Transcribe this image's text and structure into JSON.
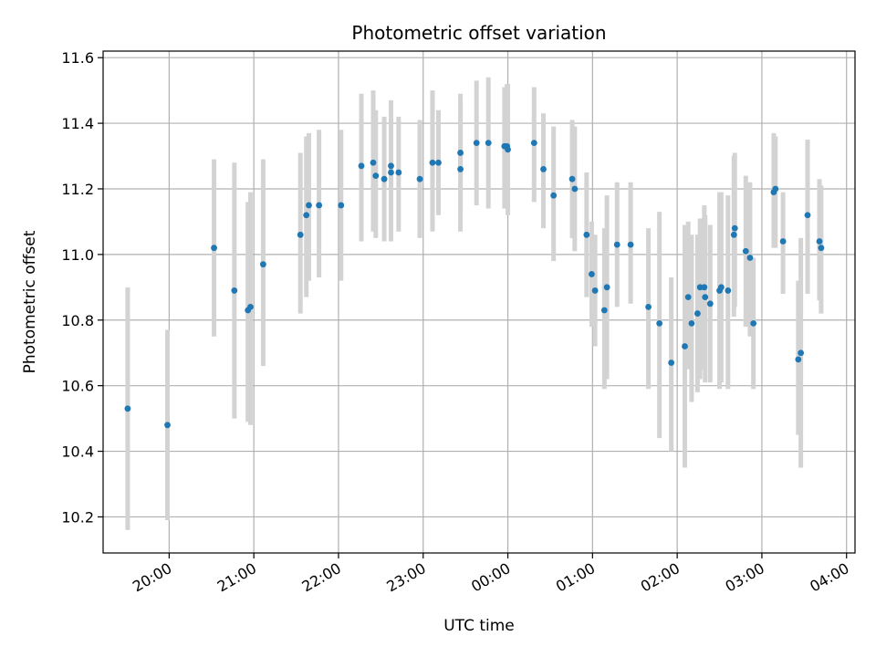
{
  "chart_data": {
    "type": "scatter",
    "title": "Photometric offset variation",
    "xlabel": "UTC time",
    "ylabel": "Photometric offset",
    "grid": true,
    "colors": {
      "marker": "#1f77b4",
      "errorbar": "#d3d3d3",
      "grid": "#b0b0b0"
    },
    "x_unit": "hours after 00:00 UTC (negative = previous evening)",
    "xlim": [
      -4.78,
      4.1
    ],
    "ylim": [
      10.09,
      11.62
    ],
    "y_ticks": [
      10.2,
      10.4,
      10.6,
      10.8,
      11.0,
      11.2,
      11.4,
      11.6
    ],
    "x_ticks": [
      {
        "value": -4,
        "label": "20:00"
      },
      {
        "value": -3,
        "label": "21:00"
      },
      {
        "value": -2,
        "label": "22:00"
      },
      {
        "value": -1,
        "label": "23:00"
      },
      {
        "value": 0,
        "label": "00:00"
      },
      {
        "value": 1,
        "label": "01:00"
      },
      {
        "value": 2,
        "label": "02:00"
      },
      {
        "value": 3,
        "label": "03:00"
      },
      {
        "value": 4,
        "label": "04:00"
      }
    ],
    "points": [
      {
        "x": -4.49,
        "y": 10.53,
        "lo": 10.16,
        "hi": 10.9
      },
      {
        "x": -4.02,
        "y": 10.48,
        "lo": 10.19,
        "hi": 10.77
      },
      {
        "x": -3.47,
        "y": 11.02,
        "lo": 10.75,
        "hi": 11.29
      },
      {
        "x": -3.23,
        "y": 10.89,
        "lo": 10.5,
        "hi": 11.28
      },
      {
        "x": -3.07,
        "y": 10.83,
        "lo": 10.49,
        "hi": 11.16
      },
      {
        "x": -3.04,
        "y": 10.84,
        "lo": 10.48,
        "hi": 11.19
      },
      {
        "x": -2.89,
        "y": 10.97,
        "lo": 10.66,
        "hi": 11.29
      },
      {
        "x": -2.45,
        "y": 11.06,
        "lo": 10.82,
        "hi": 11.31
      },
      {
        "x": -2.38,
        "y": 11.12,
        "lo": 10.87,
        "hi": 11.36
      },
      {
        "x": -2.35,
        "y": 11.15,
        "lo": 10.92,
        "hi": 11.37
      },
      {
        "x": -2.23,
        "y": 11.15,
        "lo": 10.93,
        "hi": 11.38
      },
      {
        "x": -1.97,
        "y": 11.15,
        "lo": 10.92,
        "hi": 11.38
      },
      {
        "x": -1.73,
        "y": 11.27,
        "lo": 11.04,
        "hi": 11.49
      },
      {
        "x": -1.59,
        "y": 11.28,
        "lo": 11.07,
        "hi": 11.5
      },
      {
        "x": -1.56,
        "y": 11.24,
        "lo": 11.05,
        "hi": 11.44
      },
      {
        "x": -1.46,
        "y": 11.23,
        "lo": 11.04,
        "hi": 11.42
      },
      {
        "x": -1.38,
        "y": 11.25,
        "lo": 11.04,
        "hi": 11.46
      },
      {
        "x": -1.38,
        "y": 11.27,
        "lo": 11.08,
        "hi": 11.47
      },
      {
        "x": -1.29,
        "y": 11.25,
        "lo": 11.07,
        "hi": 11.42
      },
      {
        "x": -1.04,
        "y": 11.23,
        "lo": 11.05,
        "hi": 11.41
      },
      {
        "x": -0.89,
        "y": 11.28,
        "lo": 11.07,
        "hi": 11.5
      },
      {
        "x": -0.82,
        "y": 11.28,
        "lo": 11.12,
        "hi": 11.44
      },
      {
        "x": -0.56,
        "y": 11.31,
        "lo": 11.13,
        "hi": 11.49
      },
      {
        "x": -0.56,
        "y": 11.26,
        "lo": 11.07,
        "hi": 11.46
      },
      {
        "x": -0.37,
        "y": 11.34,
        "lo": 11.15,
        "hi": 11.53
      },
      {
        "x": -0.23,
        "y": 11.34,
        "lo": 11.14,
        "hi": 11.54
      },
      {
        "x": -0.04,
        "y": 11.33,
        "lo": 11.14,
        "hi": 11.51
      },
      {
        "x": -0.01,
        "y": 11.33,
        "lo": 11.14,
        "hi": 11.52
      },
      {
        "x": 0.0,
        "y": 11.32,
        "lo": 11.12,
        "hi": 11.52
      },
      {
        "x": 0.31,
        "y": 11.34,
        "lo": 11.16,
        "hi": 11.51
      },
      {
        "x": 0.42,
        "y": 11.26,
        "lo": 11.08,
        "hi": 11.43
      },
      {
        "x": 0.54,
        "y": 11.18,
        "lo": 10.98,
        "hi": 11.39
      },
      {
        "x": 0.76,
        "y": 11.23,
        "lo": 11.05,
        "hi": 11.41
      },
      {
        "x": 0.79,
        "y": 11.2,
        "lo": 11.01,
        "hi": 11.39
      },
      {
        "x": 0.93,
        "y": 11.06,
        "lo": 10.87,
        "hi": 11.25
      },
      {
        "x": 0.99,
        "y": 10.94,
        "lo": 10.78,
        "hi": 11.1
      },
      {
        "x": 1.03,
        "y": 10.89,
        "lo": 10.72,
        "hi": 11.06
      },
      {
        "x": 1.14,
        "y": 10.83,
        "lo": 10.59,
        "hi": 11.08
      },
      {
        "x": 1.17,
        "y": 10.9,
        "lo": 10.62,
        "hi": 11.18
      },
      {
        "x": 1.29,
        "y": 11.03,
        "lo": 10.84,
        "hi": 11.22
      },
      {
        "x": 1.45,
        "y": 11.03,
        "lo": 10.85,
        "hi": 11.22
      },
      {
        "x": 1.66,
        "y": 10.84,
        "lo": 10.59,
        "hi": 11.08
      },
      {
        "x": 1.79,
        "y": 10.79,
        "lo": 10.44,
        "hi": 11.13
      },
      {
        "x": 1.93,
        "y": 10.67,
        "lo": 10.4,
        "hi": 10.93
      },
      {
        "x": 2.09,
        "y": 10.72,
        "lo": 10.35,
        "hi": 11.09
      },
      {
        "x": 2.13,
        "y": 10.87,
        "lo": 10.65,
        "hi": 11.1
      },
      {
        "x": 2.17,
        "y": 10.79,
        "lo": 10.55,
        "hi": 11.06
      },
      {
        "x": 2.24,
        "y": 10.82,
        "lo": 10.58,
        "hi": 11.06
      },
      {
        "x": 2.27,
        "y": 10.9,
        "lo": 10.62,
        "hi": 11.11
      },
      {
        "x": 2.32,
        "y": 10.9,
        "lo": 10.65,
        "hi": 11.15
      },
      {
        "x": 2.33,
        "y": 10.87,
        "lo": 10.61,
        "hi": 11.12
      },
      {
        "x": 2.39,
        "y": 10.85,
        "lo": 10.61,
        "hi": 11.09
      },
      {
        "x": 2.5,
        "y": 10.89,
        "lo": 10.59,
        "hi": 11.19
      },
      {
        "x": 2.52,
        "y": 10.9,
        "lo": 10.61,
        "hi": 11.19
      },
      {
        "x": 2.6,
        "y": 10.89,
        "lo": 10.59,
        "hi": 11.18
      },
      {
        "x": 2.67,
        "y": 11.06,
        "lo": 10.81,
        "hi": 11.3
      },
      {
        "x": 2.68,
        "y": 11.08,
        "lo": 10.84,
        "hi": 11.31
      },
      {
        "x": 2.81,
        "y": 11.01,
        "lo": 10.78,
        "hi": 11.24
      },
      {
        "x": 2.86,
        "y": 10.99,
        "lo": 10.75,
        "hi": 11.22
      },
      {
        "x": 2.9,
        "y": 10.79,
        "lo": 10.59,
        "hi": 10.99
      },
      {
        "x": 3.14,
        "y": 11.19,
        "lo": 11.02,
        "hi": 11.37
      },
      {
        "x": 3.16,
        "y": 11.2,
        "lo": 11.02,
        "hi": 11.36
      },
      {
        "x": 3.25,
        "y": 11.04,
        "lo": 10.88,
        "hi": 11.19
      },
      {
        "x": 3.43,
        "y": 10.68,
        "lo": 10.45,
        "hi": 10.92
      },
      {
        "x": 3.46,
        "y": 10.7,
        "lo": 10.35,
        "hi": 11.05
      },
      {
        "x": 3.54,
        "y": 11.12,
        "lo": 10.88,
        "hi": 11.35
      },
      {
        "x": 3.68,
        "y": 11.04,
        "lo": 10.86,
        "hi": 11.23
      },
      {
        "x": 3.7,
        "y": 11.02,
        "lo": 10.82,
        "hi": 11.21
      }
    ]
  }
}
